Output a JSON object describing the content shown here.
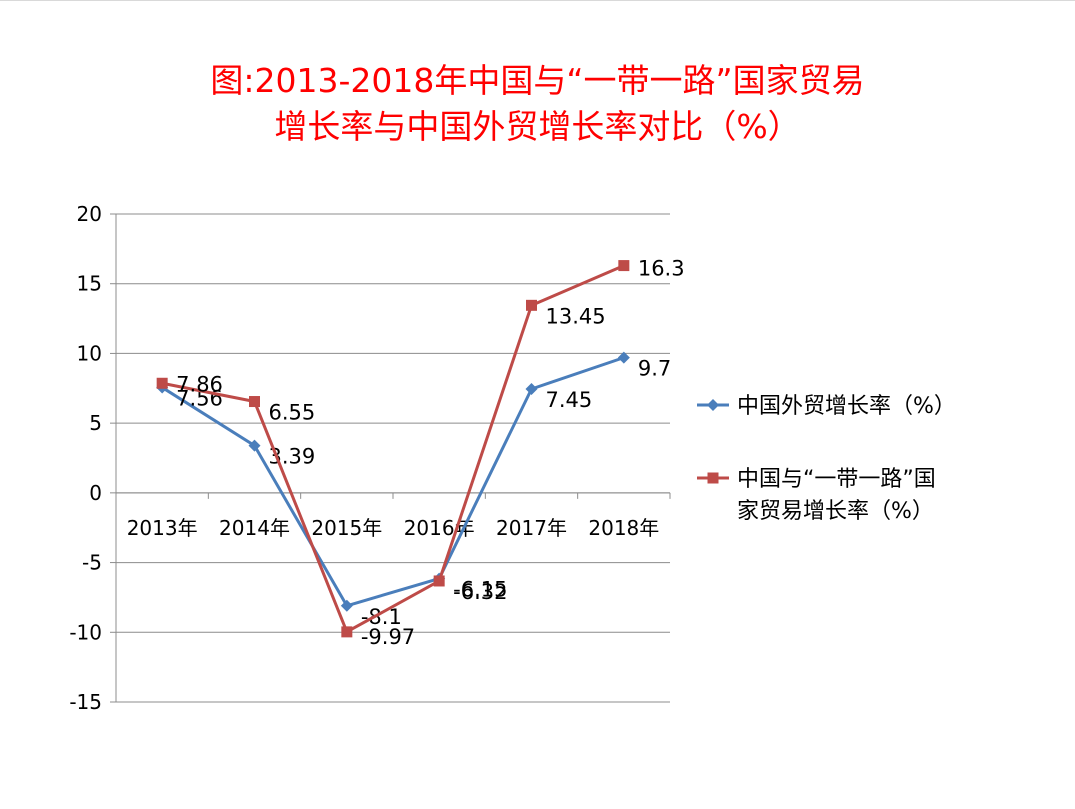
{
  "chart_data": {
    "type": "line",
    "title_line1": "图:2013-2018年中国与“一带一路”国家贸易",
    "title_line2": "增长率与中国外贸增长率对比（%）",
    "categories": [
      "2013年",
      "2014年",
      "2015年",
      "2016年",
      "2017年",
      "2018年"
    ],
    "ylim": [
      -15,
      20
    ],
    "y_ticks": [
      "20",
      "15",
      "10",
      "5",
      "0",
      "-5",
      "-10",
      "-15"
    ],
    "y_tick_values": [
      20,
      15,
      10,
      5,
      0,
      -5,
      -10,
      -15
    ],
    "grid": true,
    "legend_position": "right",
    "series": [
      {
        "name": "中国外贸增长率（%）",
        "legend_line1": "中国外贸增长率（%）",
        "legend_line2": "",
        "color": "#4a7ebb",
        "marker": "diamond",
        "values": [
          7.56,
          3.39,
          -8.1,
          -6.15,
          7.45,
          9.7
        ],
        "labels": [
          "7.56",
          "3.39",
          "-8.1",
          "-6.15",
          "7.45",
          "9.7"
        ]
      },
      {
        "name": "中国与“一带一路”国家贸易增长率（%）",
        "legend_line1": "中国与“一带一路”国",
        "legend_line2": "家贸易增长率（%）",
        "color": "#be4b48",
        "marker": "square",
        "values": [
          7.86,
          6.55,
          -9.97,
          -6.32,
          13.45,
          16.3
        ],
        "labels": [
          "7.86",
          "6.55",
          "-9.97",
          "-6.32",
          "13.45",
          "16.3"
        ]
      }
    ]
  }
}
